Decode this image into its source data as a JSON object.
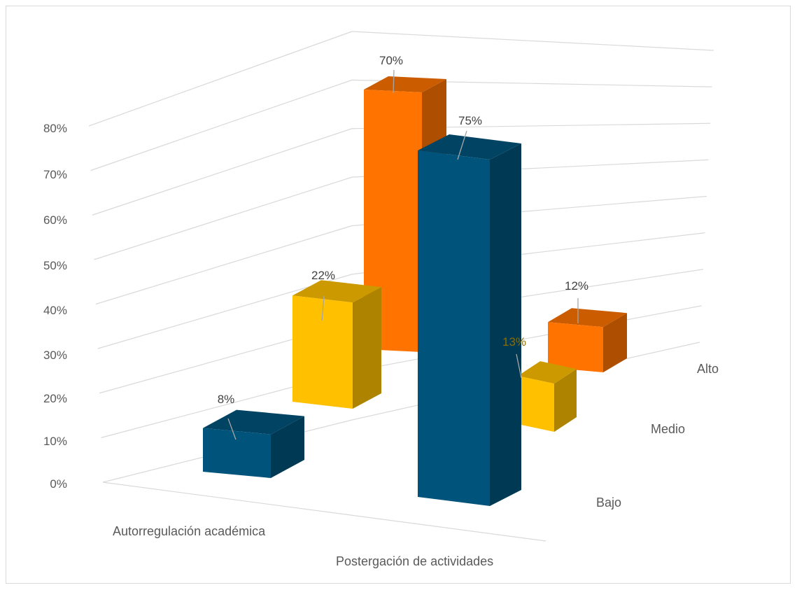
{
  "chart_data": {
    "type": "bar",
    "variant": "3d-column",
    "title": "",
    "categories": [
      "Autorregulación académica",
      "Postergación de actividades"
    ],
    "ylim": [
      0,
      80
    ],
    "y_ticks": [
      "0%",
      "10%",
      "20%",
      "30%",
      "40%",
      "50%",
      "60%",
      "70%",
      "80%"
    ],
    "grid": true,
    "legend": "none",
    "series": [
      {
        "name": "Bajo",
        "values": [
          8,
          75
        ],
        "labels": [
          "8%",
          "75%"
        ],
        "color": "#00547c"
      },
      {
        "name": "Medio",
        "values": [
          22,
          13
        ],
        "labels": [
          "22%",
          "13%"
        ],
        "color": "#ffc000"
      },
      {
        "name": "Alto",
        "values": [
          70,
          12
        ],
        "labels": [
          "70%",
          "12%"
        ],
        "color": "#ff7300"
      }
    ]
  }
}
